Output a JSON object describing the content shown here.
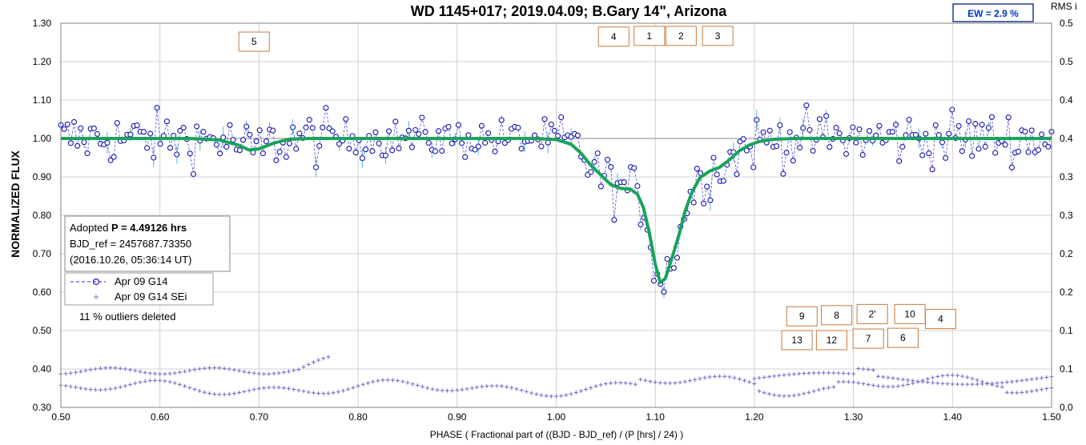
{
  "chart_data": {
    "type": "scatter",
    "title": "WD 1145+017; 2019.04.09; B.Gary 14\", Arizona",
    "xlabel": "PHASE ( Fractional part of ((BJD - BJD_ref) / (P [hrs] / 24) )",
    "ylabel": "NORMALIZED FLUX",
    "y2label": "RMS i",
    "xlim": [
      0.5,
      1.5
    ],
    "ylim": [
      0.3,
      1.3
    ],
    "y2lim": [
      0.0,
      0.5
    ],
    "x_ticks": [
      "0.50",
      "0.60",
      "0.70",
      "0.80",
      "0.90",
      "1.00",
      "1.10",
      "1.20",
      "1.30",
      "1.40",
      "1.50"
    ],
    "y_ticks": [
      "0.30",
      "0.40",
      "0.50",
      "0.60",
      "0.70",
      "0.80",
      "0.90",
      "1.00",
      "1.10",
      "1.20",
      "1.30"
    ],
    "y2_ticks": [
      "0.0",
      "0.1",
      "0.1",
      "0.2",
      "0.2",
      "0.3",
      "0.3",
      "0.4",
      "0.4",
      "0.5",
      "0.5"
    ],
    "grid": true,
    "ew_label": "EW =  2.9 %",
    "info_box": {
      "line1_prefix": "Adopted ",
      "line1_bold": "P = 4.49126 hrs",
      "line2": "BJD_ref = 2457687.73350",
      "line3": "(2016.10.26, 05:36:14 UT)"
    },
    "legend": [
      {
        "label": "Apr 09 G14",
        "marker": "circle-dashed"
      },
      {
        "label": "Apr 09 G14 SEi",
        "marker": "plus"
      }
    ],
    "outliers_note": "11 % outliers deleted",
    "dip_labels": [
      {
        "label": "5",
        "x": 0.695,
        "y": 1.252
      },
      {
        "label": "4",
        "x": 1.058,
        "y": 1.265
      },
      {
        "label": "1",
        "x": 1.094,
        "y": 1.267
      },
      {
        "label": "2",
        "x": 1.126,
        "y": 1.267
      },
      {
        "label": "3",
        "x": 1.163,
        "y": 1.267
      },
      {
        "label": "9",
        "x": 1.248,
        "y": 0.537
      },
      {
        "label": "8",
        "x": 1.283,
        "y": 0.54
      },
      {
        "label": "2'",
        "x": 1.319,
        "y": 0.543
      },
      {
        "label": "10",
        "x": 1.357,
        "y": 0.543
      },
      {
        "label": "4",
        "x": 1.388,
        "y": 0.53
      },
      {
        "label": "13",
        "x": 1.243,
        "y": 0.475
      },
      {
        "label": "12",
        "x": 1.278,
        "y": 0.475
      },
      {
        "label": "7",
        "x": 1.315,
        "y": 0.479
      },
      {
        "label": "6",
        "x": 1.35,
        "y": 0.481
      }
    ],
    "model_curve": [
      [
        0.5,
        1.0
      ],
      [
        0.63,
        1.0
      ],
      [
        0.66,
        0.996
      ],
      [
        0.68,
        0.982
      ],
      [
        0.69,
        0.97
      ],
      [
        0.7,
        0.973
      ],
      [
        0.715,
        0.988
      ],
      [
        0.73,
        0.998
      ],
      [
        0.75,
        1.0
      ],
      [
        0.98,
        1.0
      ],
      [
        1.0,
        0.997
      ],
      [
        1.015,
        0.985
      ],
      [
        1.025,
        0.962
      ],
      [
        1.035,
        0.93
      ],
      [
        1.045,
        0.905
      ],
      [
        1.055,
        0.88
      ],
      [
        1.065,
        0.87
      ],
      [
        1.075,
        0.868
      ],
      [
        1.082,
        0.855
      ],
      [
        1.088,
        0.82
      ],
      [
        1.094,
        0.755
      ],
      [
        1.1,
        0.672
      ],
      [
        1.105,
        0.625
      ],
      [
        1.11,
        0.635
      ],
      [
        1.117,
        0.69
      ],
      [
        1.124,
        0.75
      ],
      [
        1.13,
        0.81
      ],
      [
        1.137,
        0.86
      ],
      [
        1.145,
        0.898
      ],
      [
        1.155,
        0.915
      ],
      [
        1.165,
        0.925
      ],
      [
        1.175,
        0.945
      ],
      [
        1.185,
        0.968
      ],
      [
        1.195,
        0.983
      ],
      [
        1.205,
        0.992
      ],
      [
        1.22,
        0.998
      ],
      [
        1.24,
        1.0
      ],
      [
        1.5,
        1.0
      ]
    ],
    "flux_series_x_range": [
      0.5,
      1.5
    ],
    "flux_points_count": 300,
    "rms_series": [
      {
        "name": "upper",
        "start": 0.5,
        "end": 0.775,
        "approx_level": 0.4
      },
      {
        "name": "lower",
        "start": 0.5,
        "end": 1.5,
        "approx_level": 0.35
      }
    ]
  }
}
